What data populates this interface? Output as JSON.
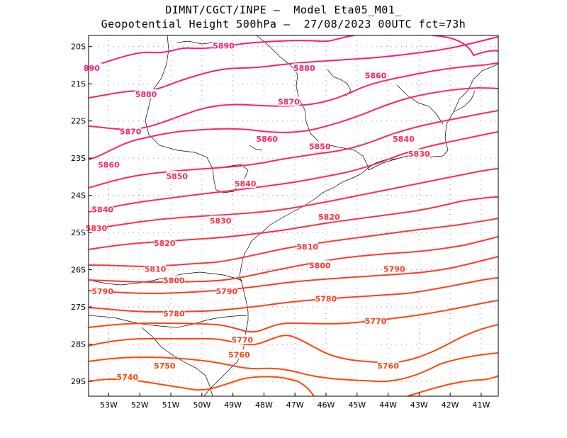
{
  "title": {
    "line1": "DIMNT/CGCT/INPE –  Model Eta05_M01_",
    "line2": "Geopotential Height 500hPa –  27/08/2023 00UTC fct=73h"
  },
  "axes": {
    "lon_ticks": [
      "53W",
      "52W",
      "51W",
      "50W",
      "49W",
      "48W",
      "47W",
      "46W",
      "45W",
      "44W",
      "43W",
      "42W",
      "41W"
    ],
    "lat_ticks": [
      "20S",
      "21S",
      "22S",
      "23S",
      "24S",
      "25S",
      "26S",
      "27S",
      "28S",
      "29S"
    ],
    "lon_range": [
      -53.65,
      -40.45
    ],
    "lat_range": [
      -29.4,
      -19.7
    ]
  },
  "colors": {
    "coast": "#000000",
    "grid": "#999999",
    "high": "#ff1a7a",
    "low": "#ff4a00"
  },
  "chart_data": {
    "type": "contour",
    "variable": "Geopotential Height 500hPa",
    "contour_interval": 10,
    "levels": [
      5890,
      5880,
      5870,
      5860,
      5850,
      5840,
      5830,
      5820,
      5810,
      5800,
      5790,
      5780,
      5770,
      5760,
      5750,
      5740
    ],
    "labels": [
      {
        "value": "5890",
        "lon": -49.3,
        "lat": -20.0
      },
      {
        "value": "890",
        "lon": -53.55,
        "lat": -20.6
      },
      {
        "value": "5880",
        "lon": -46.7,
        "lat": -20.6
      },
      {
        "value": "5880",
        "lon": -51.8,
        "lat": -21.3
      },
      {
        "value": "5870",
        "lon": -47.2,
        "lat": -21.5
      },
      {
        "value": "5870",
        "lon": -52.3,
        "lat": -22.3
      },
      {
        "value": "5860",
        "lon": -44.4,
        "lat": -20.8
      },
      {
        "value": "5860",
        "lon": -47.9,
        "lat": -22.5
      },
      {
        "value": "5860",
        "lon": -53.0,
        "lat": -23.2
      },
      {
        "value": "5850",
        "lon": -46.2,
        "lat": -22.7
      },
      {
        "value": "5850",
        "lon": -50.8,
        "lat": -23.5
      },
      {
        "value": "5840",
        "lon": -43.5,
        "lat": -22.5
      },
      {
        "value": "5840",
        "lon": -48.6,
        "lat": -23.7
      },
      {
        "value": "5840",
        "lon": -53.2,
        "lat": -24.4
      },
      {
        "value": "5830",
        "lon": -43.0,
        "lat": -22.9
      },
      {
        "value": "5830",
        "lon": -49.4,
        "lat": -24.7
      },
      {
        "value": "5830",
        "lon": -53.4,
        "lat": -24.9
      },
      {
        "value": "5820",
        "lon": -45.9,
        "lat": -24.6
      },
      {
        "value": "5820",
        "lon": -51.2,
        "lat": -25.3
      },
      {
        "value": "5810",
        "lon": -46.6,
        "lat": -25.4
      },
      {
        "value": "5810",
        "lon": -51.5,
        "lat": -26.0
      },
      {
        "value": "5800",
        "lon": -46.2,
        "lat": -25.9
      },
      {
        "value": "5800",
        "lon": -50.9,
        "lat": -26.3
      },
      {
        "value": "5790",
        "lon": -43.8,
        "lat": -26.0
      },
      {
        "value": "5790",
        "lon": -49.2,
        "lat": -26.6
      },
      {
        "value": "5790",
        "lon": -53.2,
        "lat": -26.6
      },
      {
        "value": "5780",
        "lon": -46.0,
        "lat": -26.8
      },
      {
        "value": "5780",
        "lon": -50.9,
        "lat": -27.2
      },
      {
        "value": "5770",
        "lon": -44.4,
        "lat": -27.4
      },
      {
        "value": "5770",
        "lon": -48.7,
        "lat": -27.9
      },
      {
        "value": "5760",
        "lon": -44.0,
        "lat": -28.6
      },
      {
        "value": "5760",
        "lon": -48.8,
        "lat": -28.3
      },
      {
        "value": "5750",
        "lon": -51.2,
        "lat": -28.6
      },
      {
        "value": "5740",
        "lon": -52.4,
        "lat": -28.9
      }
    ]
  }
}
